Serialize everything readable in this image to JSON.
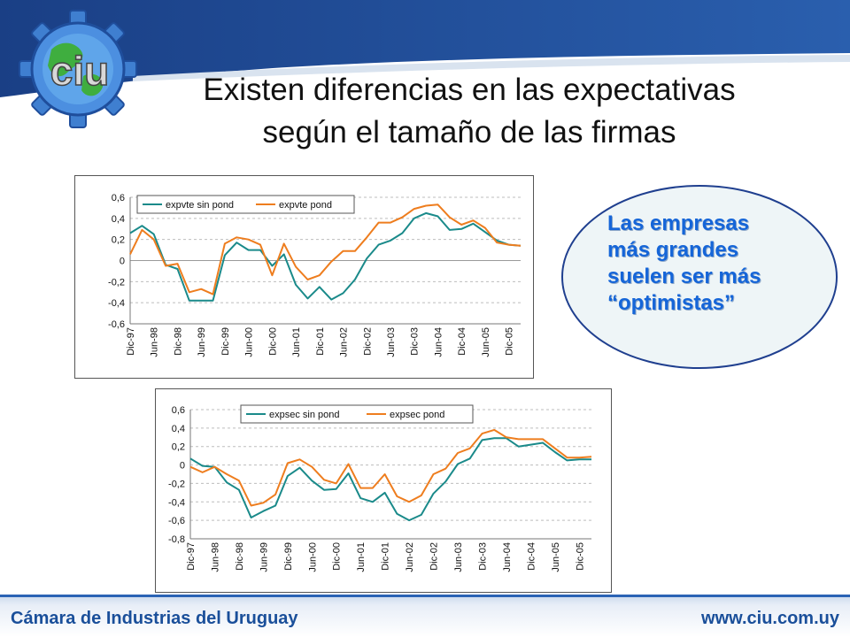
{
  "slide": {
    "title_line1": "Existen diferencias en las expectativas",
    "title_line2": "según el tamaño de las firmas",
    "callout_lines": [
      "Las empresas",
      "más grandes",
      "suelen ser más",
      "“optimistas”"
    ],
    "footer_left": "Cámara de Industrias del Uruguay",
    "footer_right": "www.ciu.com.uy",
    "logo_text": "ciu",
    "colors": {
      "band": "#1f4e9c",
      "footer": "#2a63b5",
      "teal": "#1a8a8a",
      "orange": "#ee7d1e",
      "callout_fill": "#eef5f7",
      "callout_border": "#1f3f8f",
      "callout_text": "#1565d8"
    }
  },
  "chart_data": [
    {
      "type": "line",
      "x_tick_labels": [
        "Dic-97",
        "Jun-98",
        "Dic-98",
        "Jun-99",
        "Dic-99",
        "Jun-00",
        "Dic-00",
        "Jun-01",
        "Dic-01",
        "Jun-02",
        "Dic-02",
        "Jun-03",
        "Dic-03",
        "Jun-04",
        "Dic-04",
        "Jun-05",
        "Dic-05"
      ],
      "y_ticks": [
        "0,6",
        "0,4",
        "0,2",
        "0",
        "-0,2",
        "-0,4",
        "-0,6"
      ],
      "ylim": [
        -0.6,
        0.6
      ],
      "grid": true,
      "legend": "top-left",
      "series": [
        {
          "name": "expvte sin pond",
          "color": "teal",
          "values": [
            0.26,
            0.33,
            0.25,
            -0.04,
            -0.08,
            -0.38,
            -0.38,
            -0.38,
            0.05,
            0.17,
            0.1,
            0.1,
            -0.05,
            0.06,
            -0.23,
            -0.36,
            -0.25,
            -0.37,
            -0.31,
            -0.18,
            0.02,
            0.15,
            0.19,
            0.26,
            0.4,
            0.45,
            0.42,
            0.29,
            0.3,
            0.35,
            0.27,
            0.19,
            0.15,
            0.14
          ]
        },
        {
          "name": "expvte pond",
          "color": "orange",
          "values": [
            0.06,
            0.29,
            0.2,
            -0.05,
            -0.03,
            -0.3,
            -0.27,
            -0.32,
            0.16,
            0.22,
            0.2,
            0.15,
            -0.14,
            0.16,
            -0.06,
            -0.18,
            -0.14,
            -0.01,
            0.09,
            0.09,
            0.22,
            0.36,
            0.36,
            0.41,
            0.49,
            0.52,
            0.53,
            0.41,
            0.34,
            0.38,
            0.31,
            0.17,
            0.15,
            0.14
          ]
        }
      ]
    },
    {
      "type": "line",
      "x_tick_labels": [
        "Dic-97",
        "Jun-98",
        "Dic-98",
        "Jun-99",
        "Dic-99",
        "Jun-00",
        "Dic-00",
        "Jun-01",
        "Dic-01",
        "Jun-02",
        "Dic-02",
        "Jun-03",
        "Dic-03",
        "Jun-04",
        "Dic-04",
        "Jun-05",
        "Dic-05"
      ],
      "y_ticks": [
        "0,6",
        "0,4",
        "0,2",
        "0",
        "-0,2",
        "-0,4",
        "-0,6",
        "-0,8"
      ],
      "ylim": [
        -0.8,
        0.6
      ],
      "grid": true,
      "legend": "top-center",
      "series": [
        {
          "name": "expsec sin pond",
          "color": "teal",
          "values": [
            0.07,
            -0.01,
            -0.02,
            -0.19,
            -0.27,
            -0.57,
            -0.5,
            -0.44,
            -0.12,
            -0.03,
            -0.17,
            -0.27,
            -0.26,
            -0.09,
            -0.36,
            -0.4,
            -0.3,
            -0.53,
            -0.6,
            -0.54,
            -0.31,
            -0.18,
            0.01,
            0.07,
            0.27,
            0.29,
            0.29,
            0.2,
            0.22,
            0.24,
            0.14,
            0.05,
            0.06,
            0.06
          ]
        },
        {
          "name": "expsec pond",
          "color": "orange",
          "values": [
            -0.02,
            -0.08,
            -0.02,
            -0.1,
            -0.17,
            -0.44,
            -0.41,
            -0.32,
            0.02,
            0.06,
            -0.02,
            -0.16,
            -0.2,
            0.01,
            -0.25,
            -0.25,
            -0.1,
            -0.34,
            -0.4,
            -0.33,
            -0.1,
            -0.04,
            0.13,
            0.18,
            0.34,
            0.38,
            0.3,
            0.28,
            0.28,
            0.28,
            0.18,
            0.08,
            0.08,
            0.09
          ]
        }
      ]
    }
  ]
}
